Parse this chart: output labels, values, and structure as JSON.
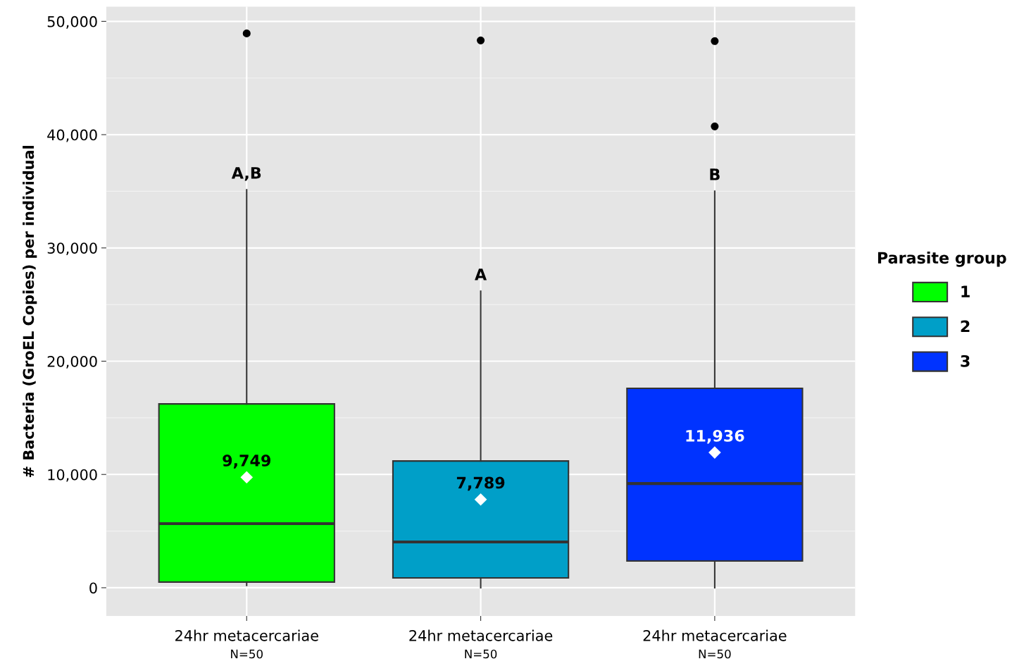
{
  "chart_data": {
    "type": "box",
    "ylabel": "# Bacteria (GroEL Copies) per individual",
    "legend_title": "Parasite group",
    "categories": [
      "24hr metacercariae\nN=50",
      "24hr metacercariae\nN=50",
      "24hr metacercariae\nN=50"
    ],
    "series": [
      {
        "name": "1",
        "color": "#00ff00",
        "boxes": [
          {
            "low": 200,
            "q1": 500,
            "median": 5660,
            "q3": 16230,
            "high": 35140,
            "mean": 9749,
            "outliers": [
              48940
            ]
          },
          null,
          null
        ]
      },
      {
        "name": "2",
        "color": "#009fc8",
        "boxes": [
          null,
          {
            "low": 0,
            "q1": 870,
            "median": 4040,
            "q3": 11190,
            "high": 26180,
            "mean": 7789,
            "outliers": [
              48320
            ]
          },
          null
        ]
      },
      {
        "name": "3",
        "color": "#0033ff",
        "boxes": [
          null,
          null,
          {
            "low": 0,
            "q1": 2360,
            "median": 9200,
            "q3": 17600,
            "high": 35010,
            "mean": 11936,
            "outliers": [
              48260,
              40730
            ]
          }
        ]
      }
    ],
    "ylim": [
      -2500,
      51300
    ],
    "yticks": [
      {
        "value": 0,
        "label": "0"
      },
      {
        "value": 10000,
        "label": "10,000"
      },
      {
        "value": 20000,
        "label": "20,000"
      },
      {
        "value": 30000,
        "label": "30,000"
      },
      {
        "value": 40000,
        "label": "40,000"
      },
      {
        "value": 50000,
        "label": "50,000"
      }
    ],
    "grid": true,
    "legend": "right",
    "annotations": [
      {
        "text": "A,B",
        "y": 35140
      },
      {
        "text": "A",
        "y": 26180
      },
      {
        "text": "B",
        "y": 35010
      },
      "9,749",
      "7,789",
      "11,936"
    ]
  }
}
